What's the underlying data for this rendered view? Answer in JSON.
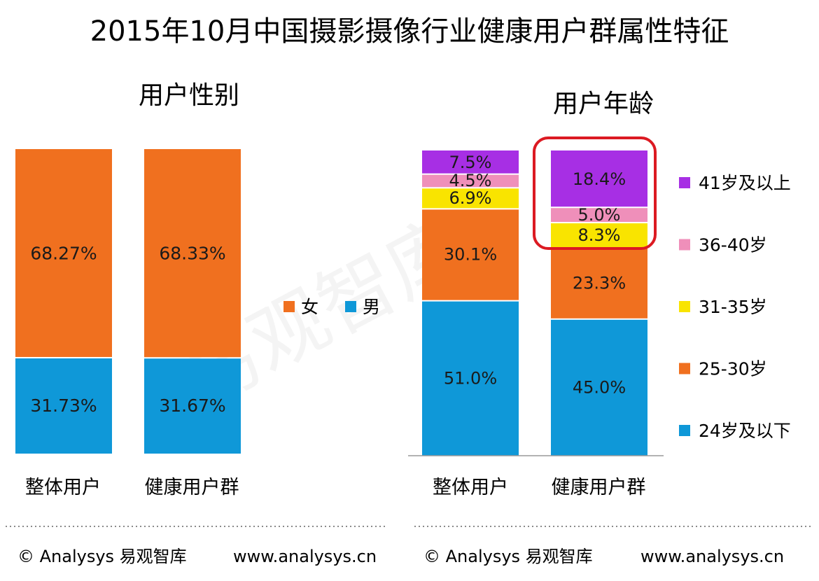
{
  "title": "2015年10月中国摄影摄像行业健康用户群属性特征",
  "watermark": "易观智库",
  "colors": {
    "orange": "#f0701f",
    "blue": "#0f98d8",
    "yellow": "#f9e400",
    "pink": "#ef8fba",
    "purple": "#a72fe4",
    "highlight": "#dc1a22"
  },
  "chart_data": [
    {
      "type": "bar",
      "stacked": true,
      "title": "用户性别",
      "categories": [
        "整体用户",
        "健康用户群"
      ],
      "series": [
        {
          "name": "男",
          "color": "blue",
          "values": [
            31.73,
            31.67
          ],
          "labels": [
            "31.73%",
            "31.67%"
          ]
        },
        {
          "name": "女",
          "color": "orange",
          "values": [
            68.27,
            68.33
          ],
          "labels": [
            "68.27%",
            "68.33%"
          ]
        }
      ],
      "legend": [
        "女",
        "男"
      ],
      "legend_position": "right"
    },
    {
      "type": "bar",
      "stacked": true,
      "title": "用户年龄",
      "categories": [
        "整体用户",
        "健康用户群"
      ],
      "series": [
        {
          "name": "24岁及以下",
          "color": "blue",
          "values": [
            51.0,
            45.0
          ],
          "labels": [
            "51.0%",
            "45.0%"
          ]
        },
        {
          "name": "25-30岁",
          "color": "orange",
          "values": [
            30.1,
            23.3
          ],
          "labels": [
            "30.1%",
            "23.3%"
          ]
        },
        {
          "name": "31-35岁",
          "color": "yellow",
          "values": [
            6.9,
            8.3
          ],
          "labels": [
            "6.9%",
            "8.3%"
          ]
        },
        {
          "name": "36-40岁",
          "color": "pink",
          "values": [
            4.5,
            5.0
          ],
          "labels": [
            "4.5%",
            "5.0%"
          ]
        },
        {
          "name": "41岁及以上",
          "color": "purple",
          "values": [
            7.5,
            18.4
          ],
          "labels": [
            "7.5%",
            "18.4%"
          ]
        }
      ],
      "legend": [
        "41岁及以上",
        "36-40岁",
        "31-35岁",
        "25-30岁",
        "24岁及以下"
      ],
      "legend_position": "right",
      "highlight": "健康用户群 upper segments circled in red"
    }
  ],
  "footer": {
    "left_credit": "© Analysys 易观智库",
    "left_url": "www.analysys.cn",
    "right_credit": "© Analysys 易观智库",
    "right_url": "www.analysys.cn"
  }
}
